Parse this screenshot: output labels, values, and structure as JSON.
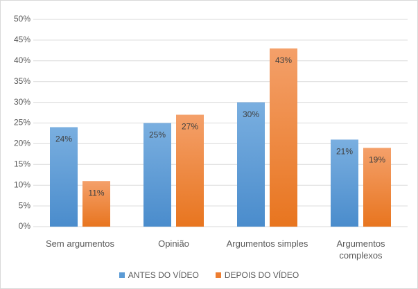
{
  "chart_data": {
    "type": "bar",
    "categories": [
      "Sem argumentos",
      "Opinião",
      "Argumentos simples",
      "Argumentos complexos"
    ],
    "series": [
      {
        "name": "ANTES DO VÍDEO",
        "color": "#5b9bd5",
        "values": [
          24,
          25,
          30,
          21
        ],
        "value_labels": [
          "24%",
          "25%",
          "30%",
          "21%"
        ]
      },
      {
        "name": "DEPOIS DO VÍDEO",
        "color": "#ed7d31",
        "values": [
          11,
          27,
          43,
          19
        ],
        "value_labels": [
          "11%",
          "27%",
          "43%",
          "19%"
        ]
      }
    ],
    "ylim": [
      0,
      50
    ],
    "yticks": [
      {
        "value": 0,
        "label": "0%"
      },
      {
        "value": 5,
        "label": "5%"
      },
      {
        "value": 10,
        "label": "10%"
      },
      {
        "value": 15,
        "label": "15%"
      },
      {
        "value": 20,
        "label": "20%"
      },
      {
        "value": 25,
        "label": "25%"
      },
      {
        "value": 30,
        "label": "30%"
      },
      {
        "value": 35,
        "label": "35%"
      },
      {
        "value": 40,
        "label": "40%"
      },
      {
        "value": 45,
        "label": "45%"
      },
      {
        "value": 50,
        "label": "50%"
      }
    ],
    "grid": true,
    "legend": "bottom"
  }
}
